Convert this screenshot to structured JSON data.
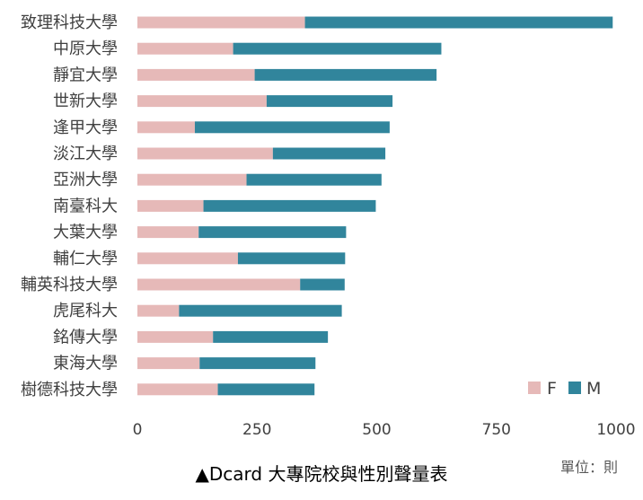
{
  "chart_data": {
    "type": "bar",
    "orientation": "horizontal",
    "stacked": true,
    "categories": [
      "致理科技大學",
      "中原大學",
      "靜宜大學",
      "世新大學",
      "逢甲大學",
      "淡江大學",
      "亞洲大學",
      "南臺科大",
      "大葉大學",
      "輔仁大學",
      "輔英科技大學",
      "虎尾科大",
      "銘傳大學",
      "東海大學",
      "樹德科技大學"
    ],
    "series": [
      {
        "name": "F",
        "color": "#E6B9B8",
        "values": [
          350,
          200,
          245,
          270,
          120,
          283,
          228,
          138,
          128,
          210,
          340,
          87,
          158,
          130,
          168
        ]
      },
      {
        "name": "M",
        "color": "#31859C",
        "values": [
          643,
          435,
          380,
          263,
          407,
          235,
          282,
          360,
          308,
          224,
          93,
          340,
          240,
          242,
          202
        ]
      }
    ],
    "xlim": [
      0,
      1000
    ],
    "xticks": [
      0,
      250,
      500,
      750,
      1000
    ],
    "legend": "bottom-right",
    "grid": false
  },
  "caption": "▲Dcard 大專院校與性別聲量表",
  "unit_note": "單位：則"
}
